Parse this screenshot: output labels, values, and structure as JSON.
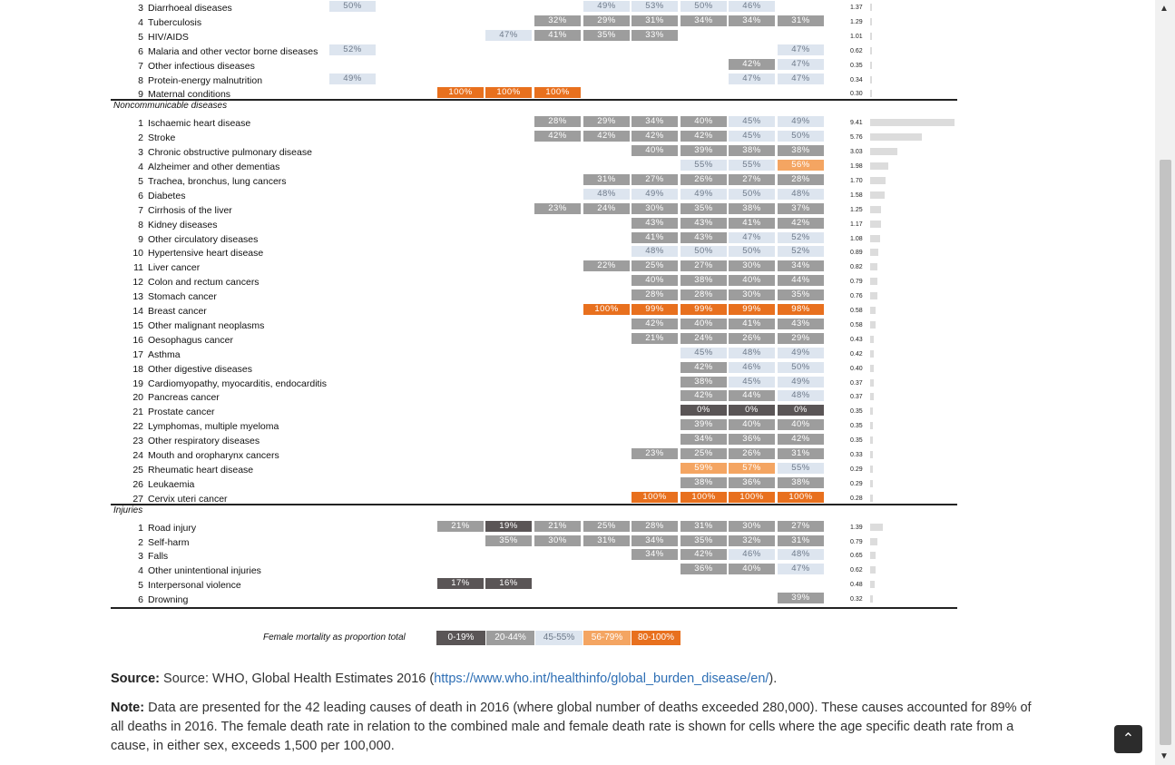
{
  "table": {
    "sections": [
      "Noncommunicable diseases",
      "Injuries"
    ],
    "rows": [
      {
        "num": "3",
        "label": "Diarrhoeal diseases",
        "rate": "1.37",
        "bar": 0.0,
        "cells": {
          "1": "50%",
          "6": "49%",
          "7": "53%",
          "8": "50%",
          "9": "46%"
        }
      },
      {
        "num": "4",
        "label": "Tuberculosis",
        "rate": "1.29",
        "bar": 0.0,
        "cells": {
          "5": "32%",
          "6": "29%",
          "7": "31%",
          "8": "34%",
          "9": "34%",
          "10": "31%"
        }
      },
      {
        "num": "5",
        "label": "HIV/AIDS",
        "rate": "1.01",
        "bar": 0.0,
        "cells": {
          "4": "47%",
          "5": "41%",
          "6": "35%",
          "7": "33%"
        }
      },
      {
        "num": "6",
        "label": "Malaria and other vector borne diseases",
        "rate": "0.62",
        "bar": 0.0,
        "cells": {
          "1": "52%",
          "10": "47%"
        }
      },
      {
        "num": "7",
        "label": "Other infectious diseases",
        "rate": "0.35",
        "bar": 0.0,
        "cells": {
          "9": "42%",
          "10": "47%"
        }
      },
      {
        "num": "8",
        "label": "Protein-energy malnutrition",
        "rate": "0.34",
        "bar": 0.0,
        "cells": {
          "1": "49%",
          "9": "47%",
          "10": "47%"
        }
      },
      {
        "num": "9",
        "label": "Maternal conditions",
        "rate": "0.30",
        "bar": 0.0,
        "cells": {
          "3": "100%",
          "4": "100%",
          "5": "100%"
        }
      },
      {
        "num": "1",
        "label": "Ischaemic heart disease",
        "rate": "9.41",
        "bar": 9.41,
        "cells": {
          "5": "28%",
          "6": "29%",
          "7": "34%",
          "8": "40%",
          "9": "45%",
          "10": "49%"
        }
      },
      {
        "num": "2",
        "label": "Stroke",
        "rate": "5.76",
        "bar": 5.76,
        "cells": {
          "5": "42%",
          "6": "42%",
          "7": "42%",
          "8": "42%",
          "9": "45%",
          "10": "50%"
        }
      },
      {
        "num": "3",
        "label": "Chronic obstructive pulmonary disease",
        "rate": "3.03",
        "bar": 3.03,
        "cells": {
          "7": "40%",
          "8": "39%",
          "9": "38%",
          "10": "38%"
        }
      },
      {
        "num": "4",
        "label": "Alzheimer and other dementias",
        "rate": "1.98",
        "bar": 1.98,
        "cells": {
          "8": "55%",
          "9": "55%",
          "10": "56%"
        }
      },
      {
        "num": "5",
        "label": "Trachea, bronchus, lung cancers",
        "rate": "1.70",
        "bar": 1.7,
        "cells": {
          "6": "31%",
          "7": "27%",
          "8": "26%",
          "9": "27%",
          "10": "28%"
        }
      },
      {
        "num": "6",
        "label": "Diabetes",
        "rate": "1.58",
        "bar": 1.58,
        "cells": {
          "6": "48%",
          "7": "49%",
          "8": "49%",
          "9": "50%",
          "10": "48%"
        }
      },
      {
        "num": "7",
        "label": "Cirrhosis of the liver",
        "rate": "1.25",
        "bar": 1.25,
        "cells": {
          "5": "23%",
          "6": "24%",
          "7": "30%",
          "8": "35%",
          "9": "38%",
          "10": "37%"
        }
      },
      {
        "num": "8",
        "label": "Kidney diseases",
        "rate": "1.17",
        "bar": 1.17,
        "cells": {
          "7": "43%",
          "8": "43%",
          "9": "41%",
          "10": "42%"
        }
      },
      {
        "num": "9",
        "label": "Other circulatory diseases",
        "rate": "1.08",
        "bar": 1.08,
        "cells": {
          "7": "41%",
          "8": "43%",
          "9": "47%",
          "10": "52%"
        }
      },
      {
        "num": "10",
        "label": "Hypertensive heart disease",
        "rate": "0.89",
        "bar": 0.89,
        "cells": {
          "7": "48%",
          "8": "50%",
          "9": "50%",
          "10": "52%"
        }
      },
      {
        "num": "11",
        "label": "Liver cancer",
        "rate": "0.82",
        "bar": 0.82,
        "cells": {
          "6": "22%",
          "7": "25%",
          "8": "27%",
          "9": "30%",
          "10": "34%"
        }
      },
      {
        "num": "12",
        "label": "Colon and rectum cancers",
        "rate": "0.79",
        "bar": 0.79,
        "cells": {
          "7": "40%",
          "8": "38%",
          "9": "40%",
          "10": "44%"
        }
      },
      {
        "num": "13",
        "label": "Stomach cancer",
        "rate": "0.76",
        "bar": 0.76,
        "cells": {
          "7": "28%",
          "8": "28%",
          "9": "30%",
          "10": "35%"
        }
      },
      {
        "num": "14",
        "label": "Breast cancer",
        "rate": "0.58",
        "bar": 0.58,
        "cells": {
          "6": "100%",
          "7": "99%",
          "8": "99%",
          "9": "99%",
          "10": "98%"
        }
      },
      {
        "num": "15",
        "label": "Other malignant neoplasms",
        "rate": "0.58",
        "bar": 0.58,
        "cells": {
          "7": "42%",
          "8": "40%",
          "9": "41%",
          "10": "43%"
        }
      },
      {
        "num": "16",
        "label": "Oesophagus cancer",
        "rate": "0.43",
        "bar": 0.43,
        "cells": {
          "7": "21%",
          "8": "24%",
          "9": "26%",
          "10": "29%"
        }
      },
      {
        "num": "17",
        "label": "Asthma",
        "rate": "0.42",
        "bar": 0.42,
        "cells": {
          "8": "45%",
          "9": "48%",
          "10": "49%"
        }
      },
      {
        "num": "18",
        "label": "Other digestive diseases",
        "rate": "0.40",
        "bar": 0.4,
        "cells": {
          "8": "42%",
          "9": "46%",
          "10": "50%"
        }
      },
      {
        "num": "19",
        "label": "Cardiomyopathy, myocarditis, endocarditis",
        "rate": "0.37",
        "bar": 0.37,
        "cells": {
          "8": "38%",
          "9": "45%",
          "10": "49%"
        }
      },
      {
        "num": "20",
        "label": "Pancreas cancer",
        "rate": "0.37",
        "bar": 0.37,
        "cells": {
          "8": "42%",
          "9": "44%",
          "10": "48%"
        }
      },
      {
        "num": "21",
        "label": "Prostate cancer",
        "rate": "0.35",
        "bar": 0.35,
        "cells": {
          "8": "0%",
          "9": "0%",
          "10": "0%"
        }
      },
      {
        "num": "22",
        "label": "Lymphomas, multiple myeloma",
        "rate": "0.35",
        "bar": 0.35,
        "cells": {
          "8": "39%",
          "9": "40%",
          "10": "40%"
        }
      },
      {
        "num": "23",
        "label": "Other respiratory diseases",
        "rate": "0.35",
        "bar": 0.35,
        "cells": {
          "8": "34%",
          "9": "36%",
          "10": "42%"
        }
      },
      {
        "num": "24",
        "label": "Mouth and oropharynx cancers",
        "rate": "0.33",
        "bar": 0.33,
        "cells": {
          "7": "23%",
          "8": "25%",
          "9": "26%",
          "10": "31%"
        }
      },
      {
        "num": "25",
        "label": "Rheumatic heart disease",
        "rate": "0.29",
        "bar": 0.29,
        "cells": {
          "8": "59%",
          "9": "57%",
          "10": "55%"
        }
      },
      {
        "num": "26",
        "label": "Leukaemia",
        "rate": "0.29",
        "bar": 0.29,
        "cells": {
          "8": "38%",
          "9": "36%",
          "10": "38%"
        }
      },
      {
        "num": "27",
        "label": "Cervix uteri cancer",
        "rate": "0.28",
        "bar": 0.28,
        "cells": {
          "7": "100%",
          "8": "100%",
          "9": "100%",
          "10": "100%"
        }
      },
      {
        "num": "1",
        "label": "Road injury",
        "rate": "1.39",
        "bar": 1.39,
        "cells": {
          "3": "21%",
          "4": "19%",
          "5": "21%",
          "6": "25%",
          "7": "28%",
          "8": "31%",
          "9": "30%",
          "10": "27%"
        }
      },
      {
        "num": "2",
        "label": "Self-harm",
        "rate": "0.79",
        "bar": 0.79,
        "cells": {
          "4": "35%",
          "5": "30%",
          "6": "31%",
          "7": "34%",
          "8": "35%",
          "9": "32%",
          "10": "31%"
        }
      },
      {
        "num": "3",
        "label": "Falls",
        "rate": "0.65",
        "bar": 0.65,
        "cells": {
          "7": "34%",
          "8": "42%",
          "9": "46%",
          "10": "48%"
        }
      },
      {
        "num": "4",
        "label": "Other unintentional injuries",
        "rate": "0.62",
        "bar": 0.62,
        "cells": {
          "8": "36%",
          "9": "40%",
          "10": "47%"
        }
      },
      {
        "num": "5",
        "label": "Interpersonal violence",
        "rate": "0.48",
        "bar": 0.48,
        "cells": {
          "3": "17%",
          "4": "16%"
        }
      },
      {
        "num": "6",
        "label": "Drowning",
        "rate": "0.32",
        "bar": 0.32,
        "cells": {
          "10": "39%"
        }
      }
    ]
  },
  "legend": {
    "title": "Female mortality as proportion total",
    "items": [
      {
        "label": "0-19%",
        "color": "#5a5556",
        "text": "#ffffff"
      },
      {
        "label": "20-44%",
        "color": "#9d9d9d",
        "text": "#ffffff"
      },
      {
        "label": "45-55%",
        "color": "#dde5ef",
        "text": "#6e7a8a"
      },
      {
        "label": "56-79%",
        "color": "#f4a562",
        "text": "#ffffff"
      },
      {
        "label": "80-100%",
        "color": "#e8701e",
        "text": "#ffffff"
      }
    ]
  },
  "source": {
    "label": "Source:",
    "text": "Source: WHO, Global Health Estimates 2016 (",
    "link": "https://www.who.int/healthinfo/global_burden_disease/en/",
    "suffix": ")."
  },
  "note": {
    "label": "Note:",
    "text": "Data are presented for the 42 leading causes of death in 2016 (where global number of deaths exceeded 280,000). These causes accounted for 89% of all deaths in 2016. The female death rate in relation to the combined male and female death rate is shown for cells where the age specific death rate from a cause, in either sex, exceeds 1,500 per 100,000."
  },
  "icons": {
    "back_to_top": "chevron-up-icon",
    "scroll_up": "triangle-up-icon",
    "scroll_down": "triangle-down-icon"
  },
  "glyphs": {
    "scroll_up": "▲",
    "scroll_down": "▼",
    "back_to_top": "⌃"
  }
}
